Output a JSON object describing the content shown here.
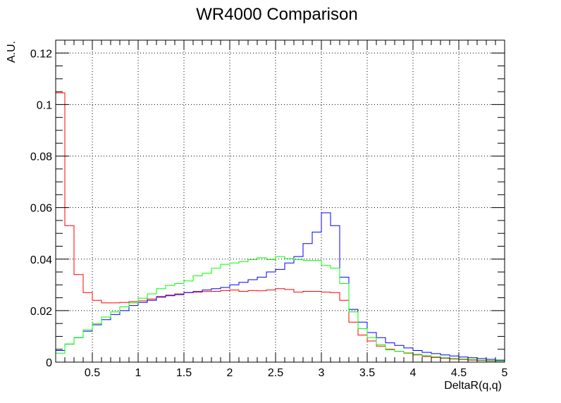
{
  "chart_data": {
    "type": "line",
    "title": "WR4000 Comparison",
    "xlabel": "DeltaR(q,q)",
    "ylabel": "A.U.",
    "xlim": [
      0.1,
      5.0
    ],
    "ylim": [
      0,
      0.125
    ],
    "grid": true,
    "legend": "none",
    "x_ticks": [
      "0.5",
      "1",
      "1.5",
      "2",
      "2.5",
      "3",
      "3.5",
      "4",
      "4.5",
      "5"
    ],
    "x_tick_values": [
      0.5,
      1,
      1.5,
      2,
      2.5,
      3,
      3.5,
      4,
      4.5,
      5
    ],
    "y_ticks": [
      "0",
      "0.02",
      "0.04",
      "0.06",
      "0.08",
      "0.1",
      "0.12"
    ],
    "y_tick_values": [
      0,
      0.02,
      0.04,
      0.06,
      0.08,
      0.1,
      0.12
    ],
    "bin_edges": [
      0.1,
      0.2,
      0.3,
      0.4,
      0.5,
      0.6,
      0.7,
      0.8,
      0.9,
      1.0,
      1.1,
      1.2,
      1.3,
      1.4,
      1.5,
      1.6,
      1.7,
      1.8,
      1.9,
      2.0,
      2.1,
      2.2,
      2.3,
      2.4,
      2.5,
      2.6,
      2.7,
      2.8,
      2.9,
      3.0,
      3.1,
      3.2,
      3.3,
      3.4,
      3.5,
      3.6,
      3.7,
      3.8,
      3.9,
      4.0,
      4.1,
      4.2,
      4.3,
      4.4,
      4.5,
      4.6,
      4.7,
      4.8,
      4.9,
      5.0
    ],
    "series": [
      {
        "color": "#ff0000",
        "values": [
          0.1045,
          0.053,
          0.034,
          0.027,
          0.024,
          0.023,
          0.023,
          0.0232,
          0.0235,
          0.0238,
          0.0245,
          0.0255,
          0.026,
          0.0265,
          0.027,
          0.0272,
          0.0274,
          0.0275,
          0.0278,
          0.028,
          0.0275,
          0.0278,
          0.0277,
          0.028,
          0.0285,
          0.0282,
          0.0272,
          0.0275,
          0.0275,
          0.0272,
          0.027,
          0.024,
          0.0155,
          0.0105,
          0.0082,
          0.0062,
          0.005,
          0.0042,
          0.0035,
          0.0028,
          0.0022,
          0.0018,
          0.0015,
          0.0012,
          0.001,
          0.0008,
          0.0006,
          0.0005,
          0.0004
        ]
      },
      {
        "color": "#0000ff",
        "values": [
          0.0045,
          0.007,
          0.0095,
          0.012,
          0.0145,
          0.0165,
          0.0185,
          0.02,
          0.022,
          0.0232,
          0.024,
          0.0252,
          0.0258,
          0.0262,
          0.027,
          0.0274,
          0.028,
          0.0285,
          0.029,
          0.03,
          0.031,
          0.032,
          0.033,
          0.035,
          0.036,
          0.0385,
          0.041,
          0.046,
          0.0505,
          0.058,
          0.053,
          0.033,
          0.0205,
          0.0155,
          0.0115,
          0.0095,
          0.0075,
          0.0065,
          0.0055,
          0.0045,
          0.0038,
          0.0033,
          0.0028,
          0.0024,
          0.002,
          0.0017,
          0.0014,
          0.0011,
          0.0008
        ]
      },
      {
        "color": "#00ff00",
        "values": [
          0.0035,
          0.007,
          0.0095,
          0.0125,
          0.015,
          0.0175,
          0.0195,
          0.0215,
          0.023,
          0.0248,
          0.0265,
          0.0285,
          0.0298,
          0.0305,
          0.0315,
          0.0335,
          0.0345,
          0.0365,
          0.038,
          0.0385,
          0.039,
          0.0398,
          0.0405,
          0.0398,
          0.041,
          0.0402,
          0.0398,
          0.0395,
          0.0395,
          0.0375,
          0.0365,
          0.0305,
          0.0195,
          0.013,
          0.0095,
          0.0068,
          0.0048,
          0.0042,
          0.0036,
          0.003,
          0.0025,
          0.0021,
          0.0017,
          0.0014,
          0.0012,
          0.001,
          0.0008,
          0.0006,
          0.0005
        ]
      }
    ]
  }
}
